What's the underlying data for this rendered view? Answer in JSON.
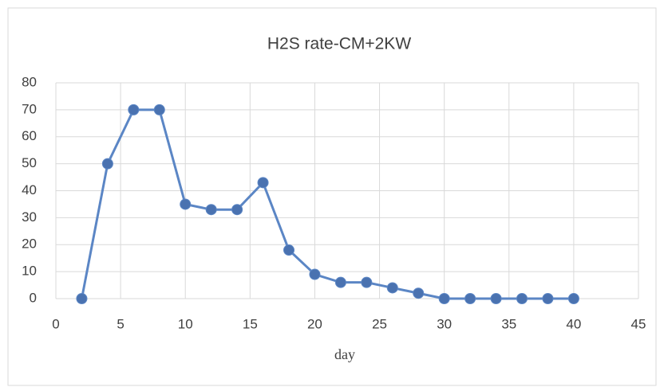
{
  "chart_data": {
    "type": "line",
    "title": "H2S rate-CM+2KW",
    "x_label": "day",
    "x": [
      2,
      4,
      6,
      8,
      10,
      12,
      14,
      16,
      18,
      20,
      22,
      24,
      26,
      28,
      30,
      32,
      34,
      36,
      38,
      40
    ],
    "series": [
      {
        "name": "H2S rate-CM+2KW",
        "color": "#5b86c5",
        "values": [
          0,
          50,
          70,
          70,
          35,
          33,
          33,
          43,
          18,
          9,
          6,
          6,
          4,
          2,
          0,
          0,
          0,
          0,
          0,
          0
        ]
      }
    ],
    "xlim": [
      0,
      45
    ],
    "xticks": [
      0,
      5,
      10,
      15,
      20,
      25,
      30,
      35,
      40,
      45
    ],
    "ylim": [
      0,
      80
    ],
    "yticks": [
      0,
      10,
      20,
      30,
      40,
      50,
      60,
      70,
      80
    ],
    "grid": true
  }
}
